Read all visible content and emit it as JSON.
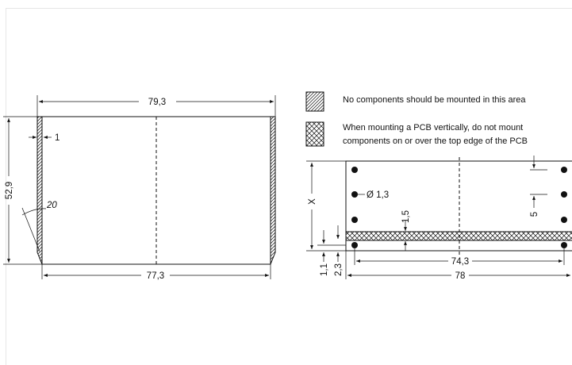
{
  "legend": {
    "hatched_text": "No components should be mounted in this area",
    "crosshatched_line1": "When mounting a PCB vertically, do not mount",
    "crosshatched_line2": "components on or over the top edge of the PCB"
  },
  "left_drawing": {
    "top_width": "79,3",
    "bottom_width": "77,3",
    "height": "52,9",
    "edge_thickness": "1",
    "angle": "20"
  },
  "right_drawing": {
    "height_label": "X",
    "hole_diameter": "Ø 1,3",
    "strip_height": "1,5",
    "hole_pitch": "5",
    "offset_small": "1,1",
    "offset_large": "2,3",
    "inner_width": "74,3",
    "outer_width": "78"
  }
}
